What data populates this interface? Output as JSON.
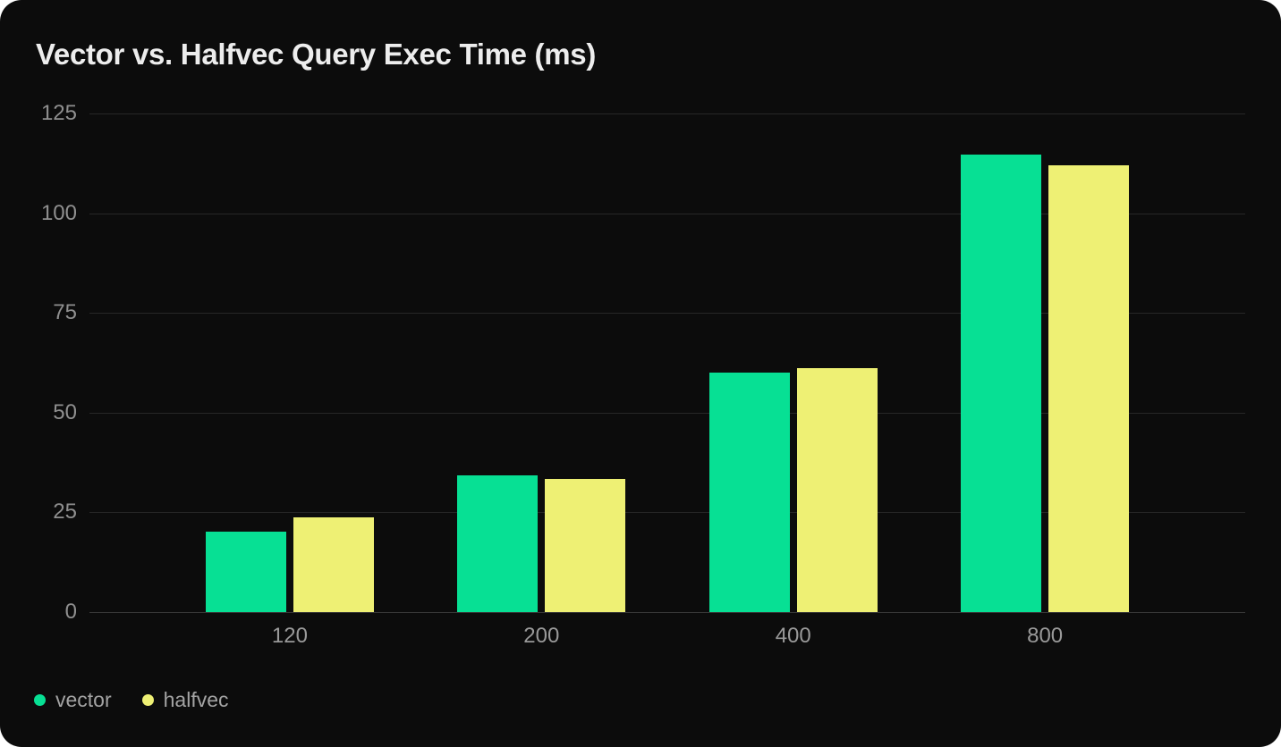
{
  "card": {
    "background": "#0c0c0c",
    "page_background": "#ffffff"
  },
  "chart_data": {
    "type": "bar",
    "title": "Vector vs. Halfvec Query Exec Time (ms)",
    "categories": [
      "120",
      "200",
      "400",
      "800"
    ],
    "series": [
      {
        "name": "vector",
        "color": "#07e094",
        "values": [
          20.1,
          34.3,
          60.1,
          114.6
        ]
      },
      {
        "name": "halfvec",
        "color": "#eef074",
        "values": [
          23.7,
          33.4,
          61.1,
          112.0
        ]
      }
    ],
    "xlabel": "",
    "ylabel": "",
    "ylim": [
      0,
      125
    ],
    "yticks": [
      0,
      25,
      50,
      75,
      100,
      125
    ],
    "grid": "horizontal",
    "legend_position": "bottom-left",
    "colors": {
      "title_text": "#ededed",
      "tick_text": "#8f8f8f",
      "gridline": "#272727",
      "zero_line": "#383838",
      "legend_text": "#a3a3a3"
    }
  }
}
